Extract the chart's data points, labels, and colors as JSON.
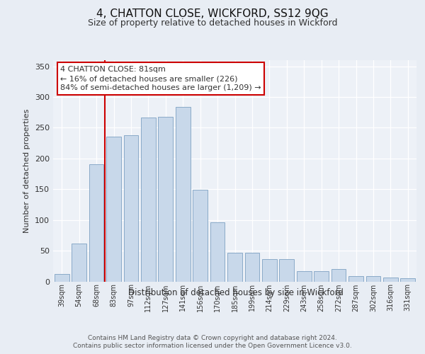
{
  "title1": "4, CHATTON CLOSE, WICKFORD, SS12 9QG",
  "title2": "Size of property relative to detached houses in Wickford",
  "xlabel": "Distribution of detached houses by size in Wickford",
  "ylabel": "Number of detached properties",
  "categories": [
    "39sqm",
    "54sqm",
    "68sqm",
    "83sqm",
    "97sqm",
    "112sqm",
    "127sqm",
    "141sqm",
    "156sqm",
    "170sqm",
    "185sqm",
    "199sqm",
    "214sqm",
    "229sqm",
    "243sqm",
    "258sqm",
    "272sqm",
    "287sqm",
    "302sqm",
    "316sqm",
    "331sqm"
  ],
  "values": [
    12,
    62,
    191,
    236,
    238,
    267,
    268,
    284,
    149,
    96,
    47,
    47,
    36,
    36,
    17,
    17,
    20,
    9,
    9,
    6,
    5
  ],
  "bar_color": "#c8d8ea",
  "bar_edge_color": "#8aaac8",
  "vline_color": "#cc0000",
  "annotation_text": "4 CHATTON CLOSE: 81sqm\n← 16% of detached houses are smaller (226)\n84% of semi-detached houses are larger (1,209) →",
  "annotation_box_color": "#ffffff",
  "annotation_box_edge": "#cc0000",
  "footer1": "Contains HM Land Registry data © Crown copyright and database right 2024.",
  "footer2": "Contains public sector information licensed under the Open Government Licence v3.0.",
  "bg_color": "#e8edf4",
  "plot_bg_color": "#edf1f7",
  "ylim": [
    0,
    360
  ],
  "yticks": [
    0,
    50,
    100,
    150,
    200,
    250,
    300,
    350
  ]
}
